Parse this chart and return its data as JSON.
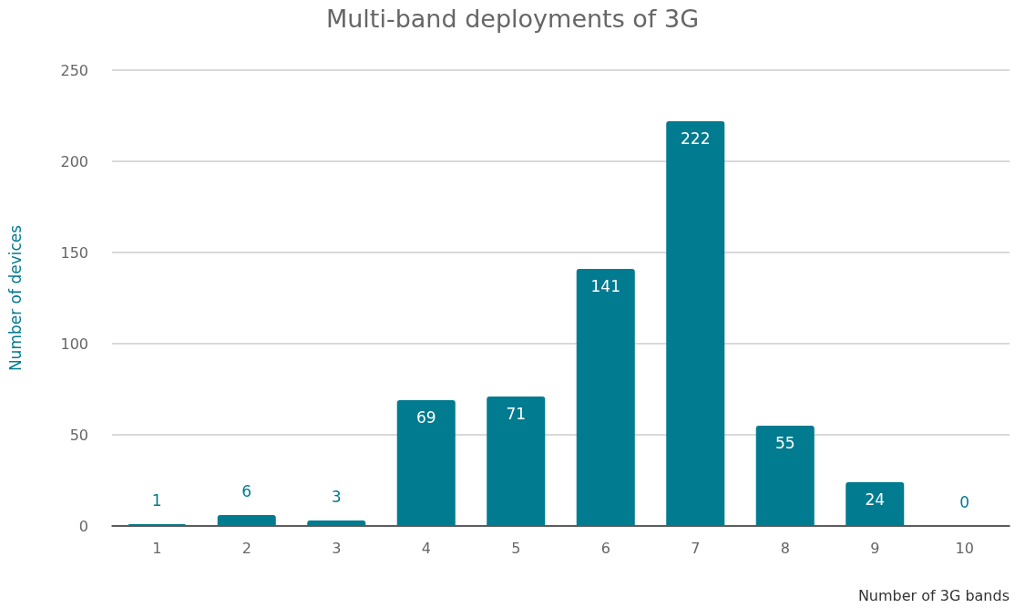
{
  "chart_data": {
    "type": "bar",
    "title": "Multi-band deployments of 3G",
    "xlabel": "Number of 3G bands",
    "ylabel": "Number of devices",
    "categories": [
      "1",
      "2",
      "3",
      "4",
      "5",
      "6",
      "7",
      "8",
      "9",
      "10"
    ],
    "values": [
      1,
      6,
      3,
      69,
      71,
      141,
      222,
      55,
      24,
      0
    ],
    "color": "#007b8f",
    "ylim": [
      0,
      250
    ],
    "yticks": [
      0,
      50,
      100,
      150,
      200,
      250
    ],
    "grid": "y",
    "data_labels": true
  }
}
